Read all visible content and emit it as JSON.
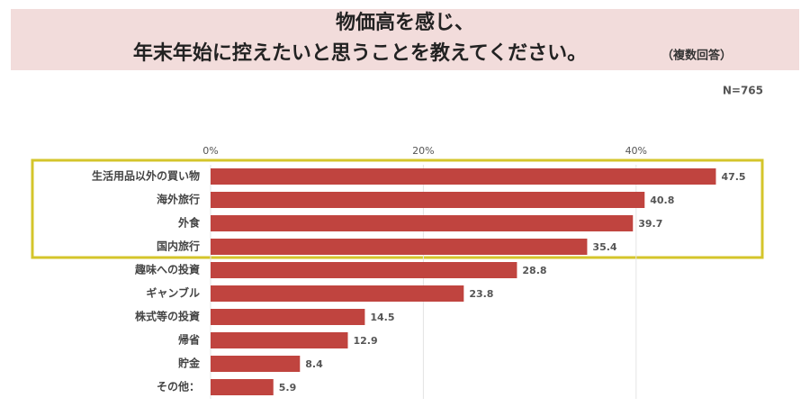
{
  "chart_data": {
    "type": "bar",
    "orientation": "horizontal",
    "title": [
      "物価高を感じ、",
      "年末年始に控えたいと思うことを教えてください。"
    ],
    "subtitle": "（複数回答）",
    "note": "N=765",
    "categories": [
      "生活用品以外の買い物",
      "海外旅行",
      "外食",
      "国内旅行",
      "趣味への投資",
      "ギャンブル",
      "株式等の投資",
      "帰省",
      "貯金",
      "その他："
    ],
    "values": [
      47.5,
      40.8,
      39.7,
      35.4,
      28.8,
      23.8,
      14.5,
      12.9,
      8.4,
      5.9
    ],
    "color": "#c0443f",
    "xlim": [
      0,
      50
    ],
    "xticks": [
      {
        "value": 0,
        "label": "0%"
      },
      {
        "value": 20,
        "label": "20%"
      },
      {
        "value": 40,
        "label": "40%"
      }
    ],
    "grid": true
  }
}
